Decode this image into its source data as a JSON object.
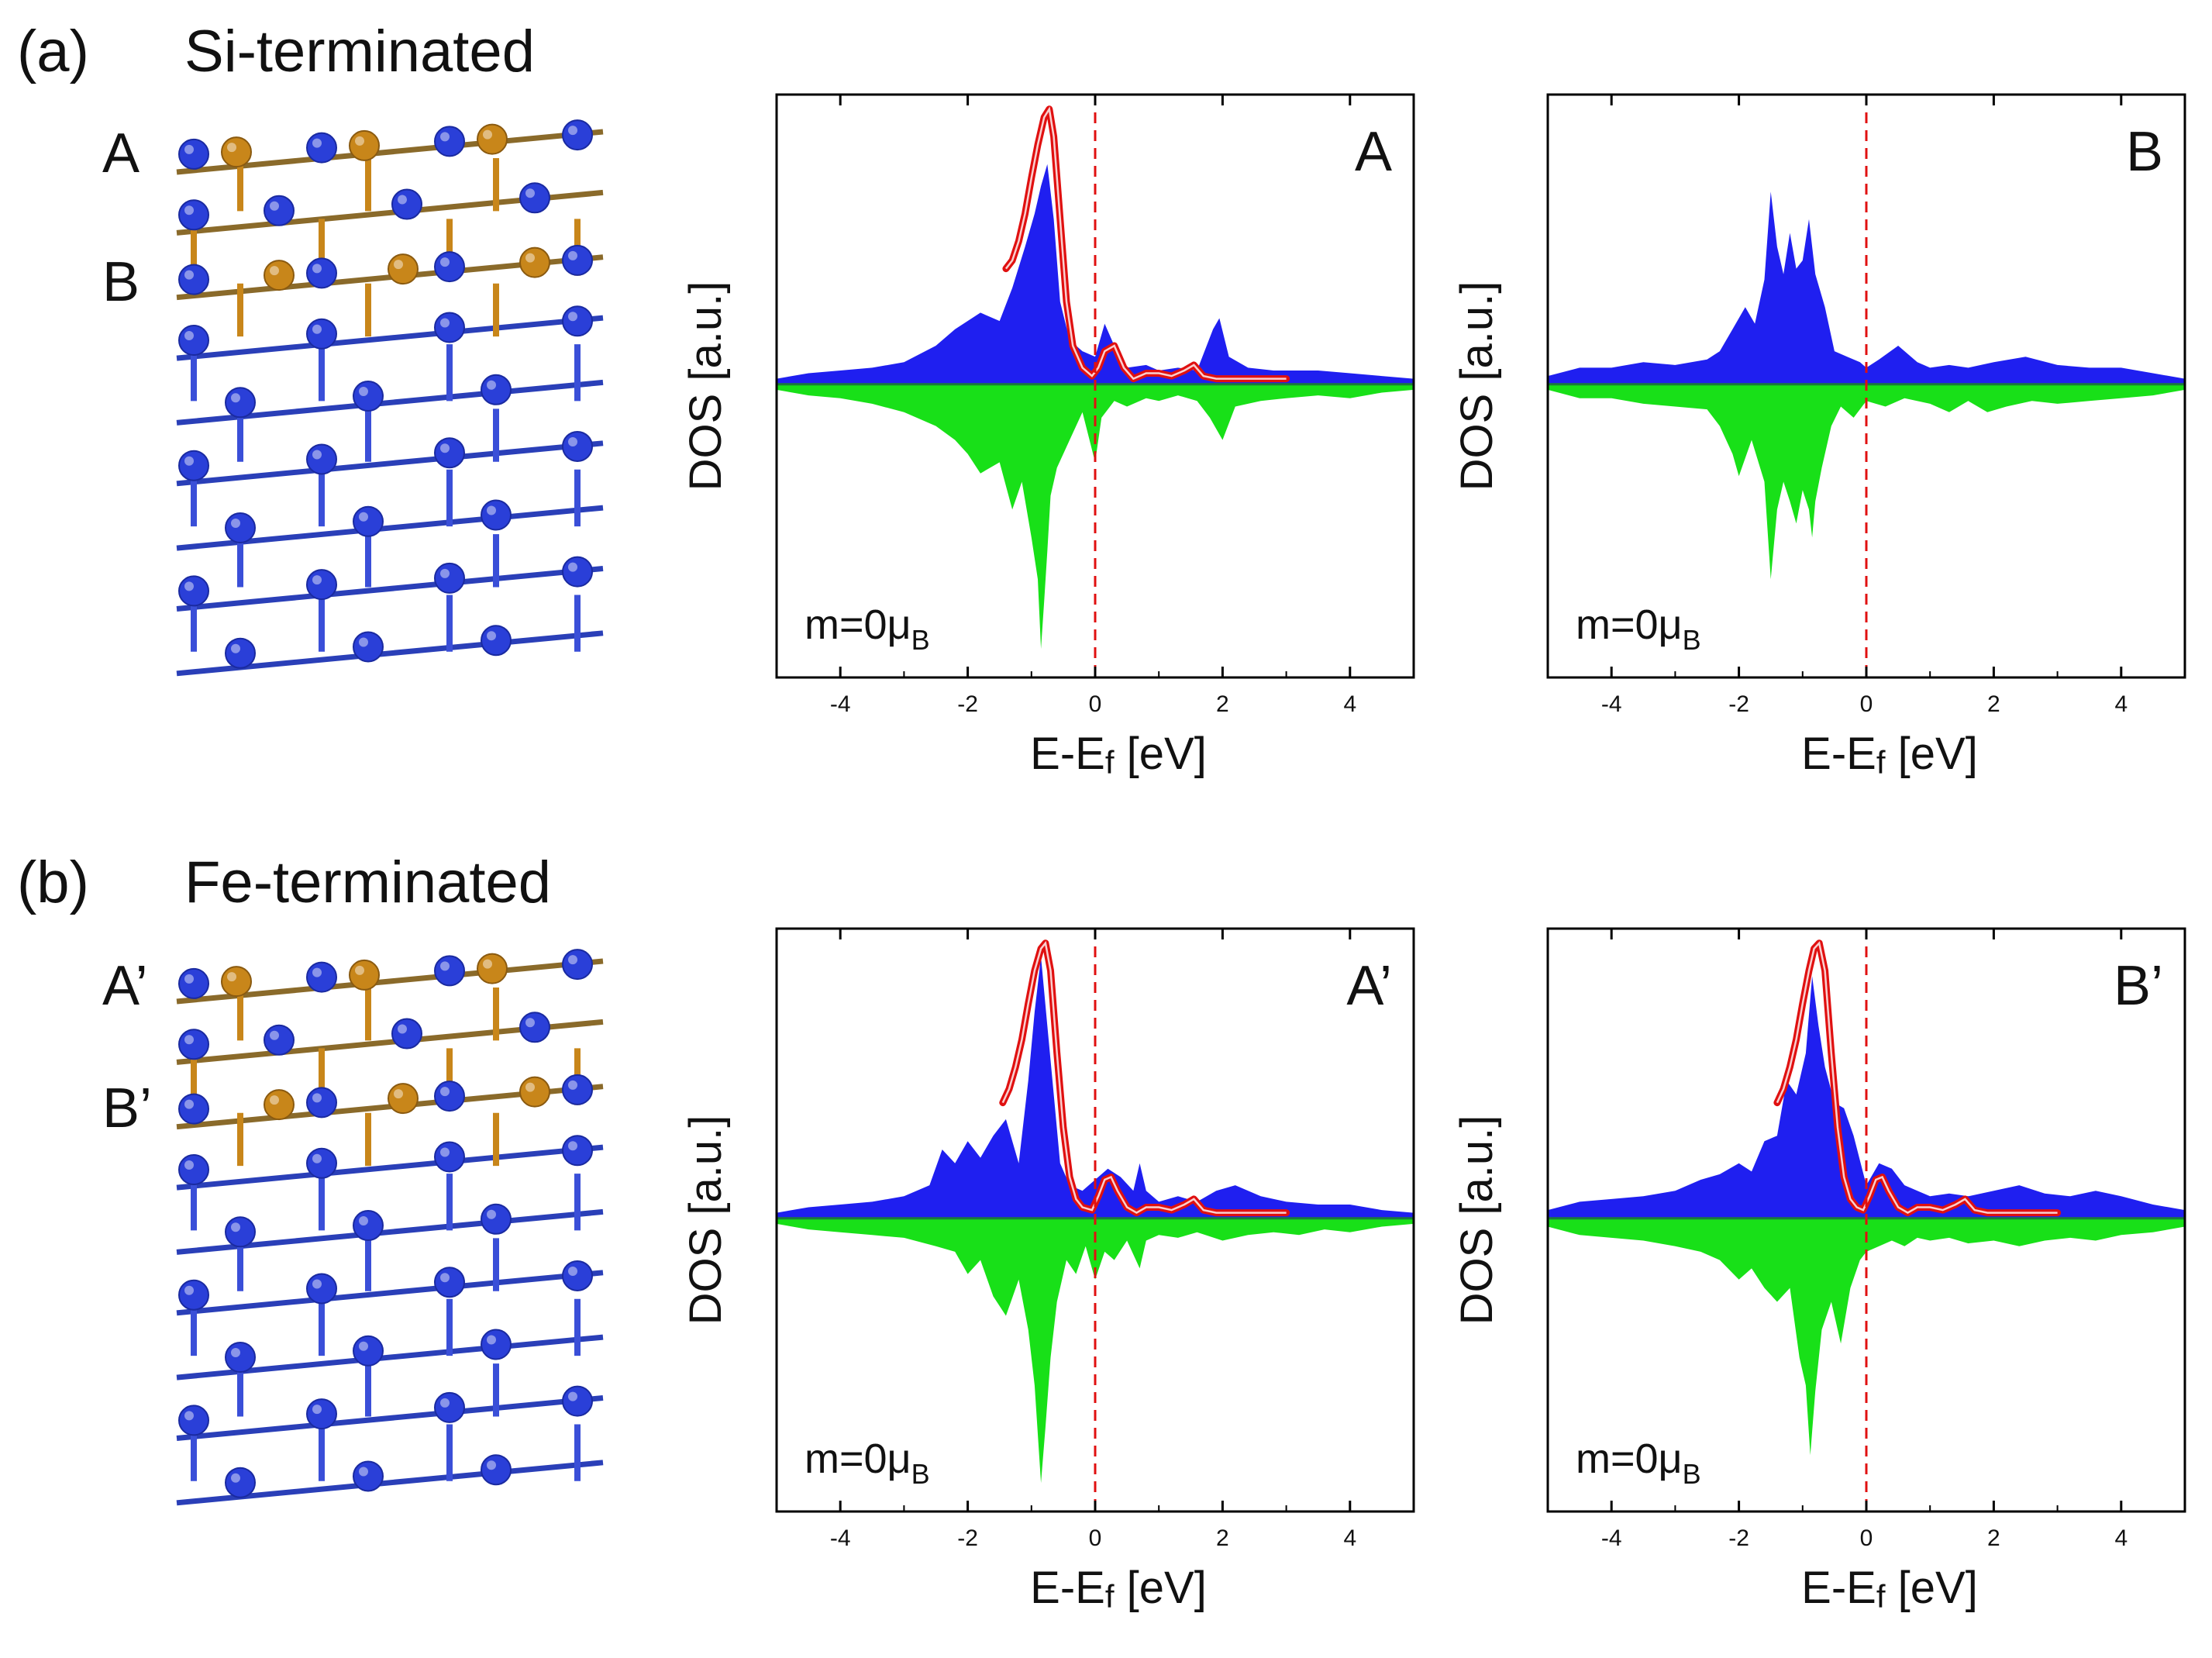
{
  "panels": [
    {
      "label": "(a)",
      "title": "Si-terminated",
      "layer_labels": [
        "A",
        "B"
      ]
    },
    {
      "label": "(b)",
      "title": "Fe-terminated",
      "layer_labels": [
        "A’",
        "B’"
      ]
    }
  ],
  "atom_colors": {
    "fe": "#c8861a",
    "si": "#2a3fd8"
  },
  "colors": {
    "spin_up": "#1f1ff0",
    "spin_down": "#18e018",
    "fit_curve": "#e01010",
    "fermi_line": "#e01010"
  },
  "chart_data": [
    {
      "type": "area",
      "label": "A",
      "magnetization": "m=0μB",
      "xlabel": "E-Ef [eV]",
      "ylabel": "DOS [a.u.]",
      "xlim": [
        -5,
        5
      ],
      "ylim": [
        -1.0,
        1.0
      ],
      "xticks": [
        -4,
        -2,
        0,
        2,
        4
      ],
      "fermi_level": 0,
      "series": [
        {
          "name": "spin up",
          "x": [
            -5,
            -4.5,
            -4,
            -3.5,
            -3,
            -2.5,
            -2.2,
            -1.8,
            -1.5,
            -1.3,
            -1.1,
            -0.95,
            -0.85,
            -0.75,
            -0.65,
            -0.55,
            -0.4,
            -0.2,
            0,
            0.15,
            0.3,
            0.5,
            0.8,
            1.0,
            1.3,
            1.6,
            1.85,
            1.95,
            2.1,
            2.4,
            2.8,
            3.5,
            4,
            4.5,
            5
          ],
          "values": [
            0.02,
            0.04,
            0.05,
            0.06,
            0.08,
            0.14,
            0.2,
            0.26,
            0.23,
            0.35,
            0.5,
            0.62,
            0.72,
            0.8,
            0.6,
            0.3,
            0.16,
            0.12,
            0.1,
            0.22,
            0.14,
            0.06,
            0.07,
            0.05,
            0.06,
            0.05,
            0.2,
            0.24,
            0.1,
            0.06,
            0.05,
            0.05,
            0.04,
            0.03,
            0.02
          ]
        },
        {
          "name": "spin down",
          "x": [
            -5,
            -4.5,
            -4,
            -3.5,
            -3,
            -2.5,
            -2.2,
            -2.0,
            -1.8,
            -1.5,
            -1.3,
            -1.15,
            -1.0,
            -0.9,
            -0.85,
            -0.8,
            -0.75,
            -0.7,
            -0.6,
            -0.4,
            -0.2,
            0,
            0.1,
            0.3,
            0.5,
            0.8,
            1.0,
            1.3,
            1.6,
            1.8,
            2.0,
            2.2,
            2.6,
            3,
            3.5,
            4,
            4.5,
            5
          ],
          "values": [
            -0.02,
            -0.04,
            -0.05,
            -0.07,
            -0.1,
            -0.15,
            -0.2,
            -0.25,
            -0.32,
            -0.28,
            -0.45,
            -0.35,
            -0.55,
            -0.7,
            -0.95,
            -0.78,
            -0.6,
            -0.4,
            -0.3,
            -0.2,
            -0.1,
            -0.28,
            -0.12,
            -0.06,
            -0.08,
            -0.05,
            -0.06,
            -0.04,
            -0.06,
            -0.12,
            -0.2,
            -0.08,
            -0.06,
            -0.05,
            -0.04,
            -0.05,
            -0.03,
            -0.02
          ]
        },
        {
          "name": "fit",
          "x": [
            -1.4,
            -1.3,
            -1.2,
            -1.1,
            -1.0,
            -0.9,
            -0.8,
            -0.72,
            -0.65,
            -0.55,
            -0.45,
            -0.35,
            -0.2,
            -0.05,
            0.05,
            0.15,
            0.3,
            0.45,
            0.6,
            0.8,
            1.0,
            1.2,
            1.4,
            1.55,
            1.7,
            1.9,
            2.2,
            2.6,
            3.0
          ],
          "values": [
            0.42,
            0.45,
            0.52,
            0.62,
            0.75,
            0.87,
            0.97,
            1.0,
            0.9,
            0.6,
            0.3,
            0.14,
            0.06,
            0.03,
            0.06,
            0.12,
            0.14,
            0.06,
            0.02,
            0.04,
            0.04,
            0.03,
            0.05,
            0.07,
            0.03,
            0.02,
            0.02,
            0.02,
            0.02
          ]
        }
      ]
    },
    {
      "type": "area",
      "label": "B",
      "magnetization": "m=0μB",
      "xlabel": "E-Ef [eV]",
      "ylabel": "DOS [a.u.]",
      "xlim": [
        -5,
        5
      ],
      "ylim": [
        -1.0,
        1.0
      ],
      "xticks": [
        -4,
        -2,
        0,
        2,
        4
      ],
      "fermi_level": 0,
      "series": [
        {
          "name": "spin up",
          "x": [
            -5,
            -4.5,
            -4,
            -3.5,
            -3,
            -2.5,
            -2.3,
            -2.1,
            -1.9,
            -1.75,
            -1.6,
            -1.5,
            -1.4,
            -1.3,
            -1.2,
            -1.1,
            -1.0,
            -0.9,
            -0.8,
            -0.65,
            -0.5,
            -0.3,
            -0.1,
            0,
            0.2,
            0.5,
            0.8,
            1.0,
            1.3,
            1.6,
            2.0,
            2.5,
            3,
            3.5,
            4,
            4.5,
            5
          ],
          "values": [
            0.03,
            0.06,
            0.06,
            0.08,
            0.07,
            0.09,
            0.12,
            0.2,
            0.28,
            0.22,
            0.38,
            0.7,
            0.5,
            0.4,
            0.55,
            0.42,
            0.45,
            0.6,
            0.4,
            0.28,
            0.12,
            0.1,
            0.08,
            0.06,
            0.09,
            0.14,
            0.08,
            0.06,
            0.07,
            0.06,
            0.08,
            0.1,
            0.07,
            0.06,
            0.06,
            0.04,
            0.02
          ]
        },
        {
          "name": "spin down",
          "x": [
            -5,
            -4.5,
            -4,
            -3.5,
            -3,
            -2.5,
            -2.3,
            -2.1,
            -2.0,
            -1.8,
            -1.6,
            -1.5,
            -1.4,
            -1.3,
            -1.2,
            -1.1,
            -1.0,
            -0.9,
            -0.85,
            -0.8,
            -0.7,
            -0.55,
            -0.4,
            -0.2,
            0,
            0.3,
            0.6,
            1.0,
            1.3,
            1.6,
            1.9,
            2.2,
            2.6,
            3,
            3.5,
            4,
            4.5,
            5
          ],
          "values": [
            -0.02,
            -0.05,
            -0.05,
            -0.07,
            -0.08,
            -0.09,
            -0.15,
            -0.25,
            -0.33,
            -0.2,
            -0.35,
            -0.7,
            -0.45,
            -0.35,
            -0.42,
            -0.5,
            -0.38,
            -0.45,
            -0.55,
            -0.42,
            -0.3,
            -0.15,
            -0.08,
            -0.12,
            -0.06,
            -0.08,
            -0.05,
            -0.07,
            -0.1,
            -0.06,
            -0.1,
            -0.08,
            -0.06,
            -0.07,
            -0.06,
            -0.05,
            -0.04,
            -0.02
          ]
        }
      ]
    },
    {
      "type": "area",
      "label": "A’",
      "magnetization": "m=0μB",
      "xlabel": "E-Ef [eV]",
      "ylabel": "DOS [a.u.]",
      "xlim": [
        -5,
        5
      ],
      "ylim": [
        -1.0,
        1.0
      ],
      "xticks": [
        -4,
        -2,
        0,
        2,
        4
      ],
      "fermi_level": 0,
      "series": [
        {
          "name": "spin up",
          "x": [
            -5,
            -4.5,
            -4,
            -3.5,
            -3,
            -2.6,
            -2.4,
            -2.2,
            -2.0,
            -1.8,
            -1.6,
            -1.4,
            -1.2,
            -1.05,
            -0.95,
            -0.85,
            -0.75,
            -0.65,
            -0.55,
            -0.4,
            -0.2,
            0,
            0.2,
            0.4,
            0.6,
            0.7,
            0.8,
            1.0,
            1.3,
            1.6,
            1.9,
            2.2,
            2.6,
            3,
            3.5,
            4,
            4.5,
            5
          ],
          "values": [
            0.02,
            0.04,
            0.05,
            0.06,
            0.08,
            0.12,
            0.25,
            0.2,
            0.28,
            0.22,
            0.3,
            0.36,
            0.2,
            0.5,
            0.75,
            0.95,
            0.7,
            0.45,
            0.2,
            0.12,
            0.1,
            0.14,
            0.18,
            0.15,
            0.1,
            0.2,
            0.1,
            0.06,
            0.08,
            0.06,
            0.1,
            0.12,
            0.08,
            0.06,
            0.05,
            0.05,
            0.03,
            0.02
          ]
        },
        {
          "name": "spin down",
          "x": [
            -5,
            -4.5,
            -4,
            -3.5,
            -3,
            -2.5,
            -2.2,
            -2.0,
            -1.8,
            -1.6,
            -1.4,
            -1.2,
            -1.05,
            -0.95,
            -0.85,
            -0.78,
            -0.7,
            -0.6,
            -0.45,
            -0.3,
            -0.15,
            0,
            0.15,
            0.3,
            0.5,
            0.7,
            0.8,
            1.0,
            1.3,
            1.6,
            2.0,
            2.4,
            2.8,
            3.2,
            3.6,
            4,
            4.5,
            5
          ],
          "values": [
            -0.02,
            -0.04,
            -0.05,
            -0.06,
            -0.07,
            -0.1,
            -0.12,
            -0.2,
            -0.15,
            -0.28,
            -0.35,
            -0.22,
            -0.4,
            -0.6,
            -0.95,
            -0.75,
            -0.5,
            -0.3,
            -0.15,
            -0.2,
            -0.1,
            -0.22,
            -0.12,
            -0.15,
            -0.08,
            -0.18,
            -0.08,
            -0.06,
            -0.07,
            -0.05,
            -0.08,
            -0.06,
            -0.05,
            -0.06,
            -0.04,
            -0.05,
            -0.03,
            -0.02
          ]
        },
        {
          "name": "fit",
          "x": [
            -1.45,
            -1.35,
            -1.25,
            -1.15,
            -1.05,
            -0.95,
            -0.85,
            -0.78,
            -0.7,
            -0.6,
            -0.5,
            -0.4,
            -0.3,
            -0.2,
            -0.05,
            0.05,
            0.15,
            0.25,
            0.35,
            0.5,
            0.65,
            0.8,
            1.0,
            1.2,
            1.4,
            1.55,
            1.7,
            1.9,
            2.2,
            2.6,
            3.0
          ],
          "values": [
            0.42,
            0.47,
            0.55,
            0.65,
            0.78,
            0.9,
            0.98,
            1.0,
            0.9,
            0.6,
            0.33,
            0.15,
            0.07,
            0.04,
            0.03,
            0.08,
            0.14,
            0.15,
            0.1,
            0.04,
            0.02,
            0.04,
            0.04,
            0.03,
            0.05,
            0.07,
            0.03,
            0.02,
            0.02,
            0.02,
            0.02
          ]
        }
      ]
    },
    {
      "type": "area",
      "label": "B’",
      "magnetization": "m=0μB",
      "xlabel": "E-Ef [eV]",
      "ylabel": "DOS [a.u.]",
      "xlim": [
        -5,
        5
      ],
      "ylim": [
        -1.0,
        1.0
      ],
      "xticks": [
        -4,
        -2,
        0,
        2,
        4
      ],
      "fermi_level": 0,
      "series": [
        {
          "name": "spin up",
          "x": [
            -5,
            -4.5,
            -4,
            -3.5,
            -3,
            -2.6,
            -2.3,
            -2.0,
            -1.8,
            -1.6,
            -1.4,
            -1.25,
            -1.1,
            -0.95,
            -0.85,
            -0.75,
            -0.65,
            -0.5,
            -0.35,
            -0.2,
            0,
            0.2,
            0.4,
            0.6,
            0.8,
            1.0,
            1.3,
            1.6,
            2.0,
            2.4,
            2.8,
            3.2,
            3.6,
            4,
            4.5,
            5
          ],
          "values": [
            0.03,
            0.06,
            0.07,
            0.08,
            0.1,
            0.14,
            0.16,
            0.2,
            0.17,
            0.28,
            0.3,
            0.5,
            0.45,
            0.6,
            0.88,
            0.7,
            0.55,
            0.42,
            0.4,
            0.3,
            0.12,
            0.2,
            0.18,
            0.12,
            0.1,
            0.08,
            0.09,
            0.08,
            0.1,
            0.12,
            0.09,
            0.08,
            0.1,
            0.08,
            0.05,
            0.03
          ]
        },
        {
          "name": "spin down",
          "x": [
            -5,
            -4.5,
            -4,
            -3.5,
            -3,
            -2.6,
            -2.3,
            -2.0,
            -1.8,
            -1.6,
            -1.4,
            -1.2,
            -1.05,
            -0.95,
            -0.88,
            -0.8,
            -0.7,
            -0.55,
            -0.4,
            -0.25,
            -0.1,
            0,
            0.2,
            0.4,
            0.6,
            0.8,
            1.0,
            1.3,
            1.6,
            2.0,
            2.4,
            2.8,
            3.2,
            3.6,
            4,
            4.5,
            5
          ],
          "values": [
            -0.03,
            -0.06,
            -0.07,
            -0.08,
            -0.1,
            -0.12,
            -0.15,
            -0.22,
            -0.18,
            -0.25,
            -0.3,
            -0.25,
            -0.5,
            -0.6,
            -0.85,
            -0.62,
            -0.4,
            -0.3,
            -0.45,
            -0.25,
            -0.15,
            -0.12,
            -0.1,
            -0.08,
            -0.1,
            -0.07,
            -0.08,
            -0.07,
            -0.09,
            -0.08,
            -0.1,
            -0.08,
            -0.07,
            -0.08,
            -0.06,
            -0.05,
            -0.03
          ]
        },
        {
          "name": "fit",
          "x": [
            -1.4,
            -1.3,
            -1.2,
            -1.1,
            -1.0,
            -0.9,
            -0.82,
            -0.74,
            -0.65,
            -0.55,
            -0.45,
            -0.35,
            -0.25,
            -0.15,
            -0.05,
            0.05,
            0.15,
            0.25,
            0.35,
            0.5,
            0.65,
            0.8,
            1.0,
            1.2,
            1.4,
            1.55,
            1.7,
            1.9,
            2.2,
            2.6,
            3.0
          ],
          "values": [
            0.42,
            0.47,
            0.55,
            0.65,
            0.78,
            0.9,
            0.98,
            1.0,
            0.9,
            0.6,
            0.33,
            0.15,
            0.07,
            0.04,
            0.03,
            0.08,
            0.14,
            0.15,
            0.1,
            0.04,
            0.02,
            0.04,
            0.04,
            0.03,
            0.05,
            0.07,
            0.03,
            0.02,
            0.02,
            0.02,
            0.02
          ]
        }
      ]
    }
  ]
}
